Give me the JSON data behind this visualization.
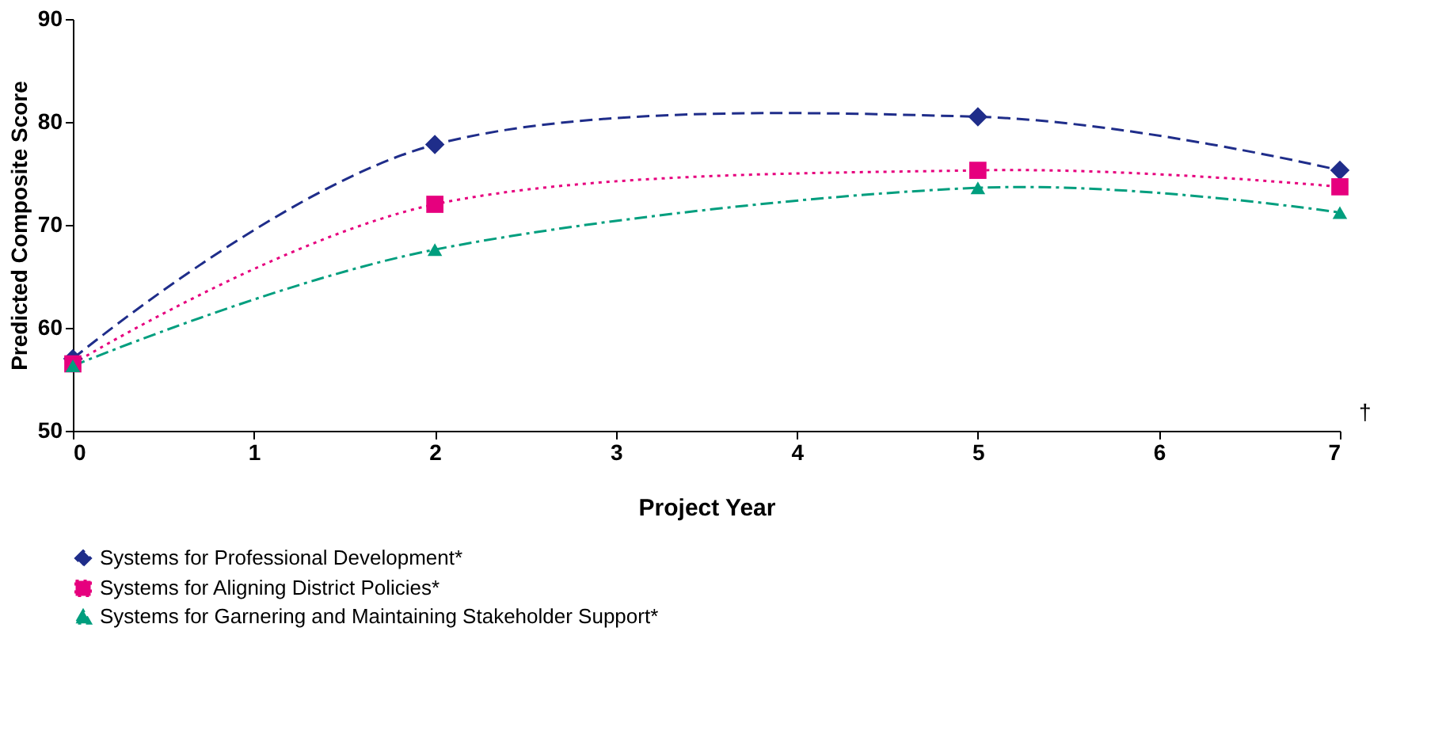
{
  "chart_data": {
    "type": "line",
    "xlabel": "Project Year",
    "ylabel": "Predicted Composite Score",
    "x": [
      0,
      2,
      5,
      7
    ],
    "xlim": [
      0,
      7
    ],
    "xticks": [
      0,
      1,
      2,
      3,
      4,
      5,
      6,
      7
    ],
    "ylim": [
      50,
      90
    ],
    "yticks": [
      50,
      60,
      70,
      80,
      90
    ],
    "grid": false,
    "legend": "bottom",
    "annotations": [
      "†"
    ],
    "series": [
      {
        "name": "Systems for Professional Development*",
        "color": "#1f2d8a",
        "values": [
          57,
          77.8,
          80.5,
          75.3
        ],
        "marker": "diamond",
        "line_style": "dashed"
      },
      {
        "name": "Systems for Aligning District Policies*",
        "color": "#e6007e",
        "values": [
          56.5,
          72,
          75.3,
          73.7
        ],
        "marker": "square",
        "line_style": "dotted"
      },
      {
        "name": "Systems for Garnering and Maintaining Stakeholder Support*",
        "color": "#009e7e",
        "values": [
          56.3,
          67.6,
          73.6,
          71.2
        ],
        "marker": "triangle",
        "line_style": "dashdot"
      }
    ]
  }
}
